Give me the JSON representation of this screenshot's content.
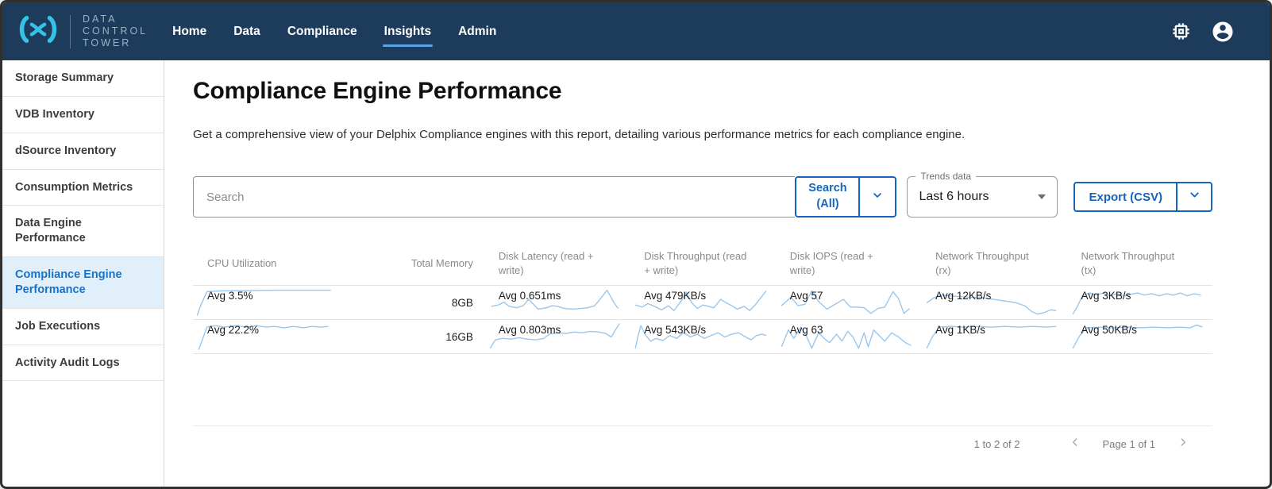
{
  "colors": {
    "navbar_bg": "#1d3c5c",
    "logo_cyan": "#35c2e8",
    "accent_blue": "#1565c0",
    "active_underline": "#58a6e8",
    "sidebar_active_bg": "#e1effa",
    "sidebar_active_text": "#1872c8",
    "sparkline": "#9ac7ee",
    "header_text": "#8a8a8a"
  },
  "icons": {
    "navbar_right": [
      "developer-chip-icon",
      "account-circle-icon"
    ],
    "search_caret": "chevron-down-icon",
    "trends_arrow": "dropdown-arrow-icon",
    "export_caret": "chevron-down-icon",
    "pagination_prev": "chevron-left-icon",
    "pagination_next": "chevron-right-icon"
  },
  "navbar": {
    "logo": {
      "mark": "delphix-x-mark",
      "lines": [
        "DATA",
        "CONTROL",
        "TOWER"
      ]
    },
    "items": [
      {
        "label": "Home",
        "active": false
      },
      {
        "label": "Data",
        "active": false
      },
      {
        "label": "Compliance",
        "active": false
      },
      {
        "label": "Insights",
        "active": true
      },
      {
        "label": "Admin",
        "active": false
      }
    ]
  },
  "sidebar": {
    "items": [
      {
        "label": "Storage Summary",
        "active": false
      },
      {
        "label": "VDB Inventory",
        "active": false
      },
      {
        "label": "dSource Inventory",
        "active": false
      },
      {
        "label": "Consumption Metrics",
        "active": false
      },
      {
        "label": "Data Engine Performance",
        "active": false
      },
      {
        "label": "Compliance Engine Performance",
        "active": true
      },
      {
        "label": "Job Executions",
        "active": false
      },
      {
        "label": "Activity Audit Logs",
        "active": false
      }
    ]
  },
  "page": {
    "title": "Compliance Engine Performance",
    "description": "Get a comprehensive view of your Delphix Compliance engines with this report, detailing various performance metrics for each compliance engine."
  },
  "controls": {
    "search": {
      "placeholder": "Search",
      "value": "",
      "button_label": "Search (All)"
    },
    "trends": {
      "label": "Trends data",
      "value": "Last 6 hours"
    },
    "export": {
      "label": "Export (CSV)"
    }
  },
  "chart_data": {
    "type": "table",
    "columns": [
      {
        "label": "CPU Utilization",
        "type": "spark",
        "align": "left"
      },
      {
        "label": "Total Memory",
        "type": "text",
        "align": "right"
      },
      {
        "label": "Disk Latency (read + write)",
        "type": "spark",
        "align": "left"
      },
      {
        "label": "Disk Throughput (read + write)",
        "type": "spark",
        "align": "left"
      },
      {
        "label": "Disk IOPS (read + write)",
        "type": "spark",
        "align": "left"
      },
      {
        "label": "Network Throughput (rx)",
        "type": "spark",
        "align": "left"
      },
      {
        "label": "Network Throughput (tx)",
        "type": "spark",
        "align": "left"
      }
    ],
    "rows": [
      {
        "cells": [
          {
            "avg": "Avg 3.5%",
            "trend": [
              [
                2,
                40
              ],
              [
                4,
                28
              ],
              [
                9,
                6
              ],
              [
                20,
                5
              ],
              [
                60,
                4
              ],
              [
                99,
                4
              ]
            ]
          },
          {
            "text": "8GB"
          },
          {
            "avg": "Avg 0.651ms",
            "trend": [
              [
                4,
                27
              ],
              [
                9,
                25
              ],
              [
                13,
                21
              ],
              [
                17,
                27
              ],
              [
                22,
                29
              ],
              [
                27,
                26
              ],
              [
                31,
                17
              ],
              [
                34,
                23
              ],
              [
                38,
                31
              ],
              [
                44,
                29
              ],
              [
                48,
                26
              ],
              [
                52,
                27
              ],
              [
                57,
                30
              ],
              [
                63,
                31
              ],
              [
                69,
                30
              ],
              [
                74,
                29
              ],
              [
                79,
                26
              ],
              [
                84,
                14
              ],
              [
                88,
                4
              ],
              [
                93,
                22
              ],
              [
                96,
                30
              ]
            ]
          },
          {
            "avg": "Avg 479KB/s",
            "trend": [
              [
                3,
                25
              ],
              [
                8,
                28
              ],
              [
                12,
                23
              ],
              [
                17,
                27
              ],
              [
                22,
                32
              ],
              [
                27,
                26
              ],
              [
                31,
                33
              ],
              [
                36,
                20
              ],
              [
                40,
                7
              ],
              [
                44,
                22
              ],
              [
                48,
                30
              ],
              [
                52,
                25
              ],
              [
                56,
                27
              ],
              [
                60,
                29
              ],
              [
                65,
                17
              ],
              [
                69,
                22
              ],
              [
                73,
                26
              ],
              [
                77,
                31
              ],
              [
                82,
                27
              ],
              [
                86,
                33
              ],
              [
                90,
                25
              ],
              [
                94,
                15
              ],
              [
                98,
                5
              ]
            ]
          },
          {
            "avg": "Avg 57",
            "trend": [
              [
                3,
                26
              ],
              [
                10,
                14
              ],
              [
                15,
                26
              ],
              [
                20,
                24
              ],
              [
                25,
                5
              ],
              [
                30,
                20
              ],
              [
                36,
                31
              ],
              [
                42,
                24
              ],
              [
                48,
                17
              ],
              [
                53,
                28
              ],
              [
                58,
                28
              ],
              [
                63,
                29
              ],
              [
                68,
                37
              ],
              [
                73,
                30
              ],
              [
                78,
                28
              ],
              [
                84,
                6
              ],
              [
                88,
                16
              ],
              [
                92,
                37
              ],
              [
                96,
                30
              ]
            ]
          },
          {
            "avg": "Avg 12KB/s",
            "trend": [
              [
                3,
                22
              ],
              [
                8,
                15
              ],
              [
                13,
                11
              ],
              [
                20,
                12
              ],
              [
                27,
                13
              ],
              [
                34,
                14
              ],
              [
                41,
                14
              ],
              [
                48,
                16
              ],
              [
                55,
                18
              ],
              [
                62,
                20
              ],
              [
                68,
                22
              ],
              [
                74,
                26
              ],
              [
                79,
                34
              ],
              [
                83,
                38
              ],
              [
                88,
                36
              ],
              [
                93,
                32
              ],
              [
                97,
                33
              ]
            ]
          },
          {
            "avg": "Avg 3KB/s",
            "trend": [
              [
                3,
                38
              ],
              [
                6,
                28
              ],
              [
                10,
                12
              ],
              [
                15,
                8
              ],
              [
                20,
                11
              ],
              [
                25,
                8
              ],
              [
                30,
                12
              ],
              [
                35,
                9
              ],
              [
                40,
                12
              ],
              [
                45,
                10
              ],
              [
                50,
                8
              ],
              [
                55,
                11
              ],
              [
                60,
                9
              ],
              [
                66,
                12
              ],
              [
                71,
                9
              ],
              [
                76,
                11
              ],
              [
                81,
                8
              ],
              [
                86,
                12
              ],
              [
                91,
                9
              ],
              [
                96,
                11
              ]
            ]
          }
        ]
      },
      {
        "cells": [
          {
            "avg": "Avg 22.2%",
            "trend": [
              [
                3,
                40
              ],
              [
                9,
                8
              ],
              [
                15,
                6
              ],
              [
                22,
                8
              ],
              [
                30,
                6
              ],
              [
                38,
                8
              ],
              [
                45,
                6
              ],
              [
                52,
                8
              ],
              [
                58,
                7
              ],
              [
                65,
                9
              ],
              [
                72,
                7
              ],
              [
                79,
                9
              ],
              [
                85,
                7
              ],
              [
                92,
                8
              ],
              [
                97,
                7
              ]
            ]
          },
          {
            "text": "16GB"
          },
          {
            "avg": "Avg 0.803ms",
            "trend": [
              [
                3,
                38
              ],
              [
                7,
                26
              ],
              [
                12,
                24
              ],
              [
                18,
                25
              ],
              [
                24,
                23
              ],
              [
                30,
                25
              ],
              [
                36,
                26
              ],
              [
                42,
                24
              ],
              [
                46,
                18
              ],
              [
                52,
                16
              ],
              [
                58,
                17
              ],
              [
                64,
                15
              ],
              [
                70,
                16
              ],
              [
                76,
                14
              ],
              [
                82,
                15
              ],
              [
                87,
                17
              ],
              [
                91,
                22
              ],
              [
                94,
                12
              ],
              [
                97,
                3
              ]
            ]
          },
          {
            "avg": "Avg 543KB/s",
            "trend": [
              [
                3,
                38
              ],
              [
                5,
                20
              ],
              [
                7,
                6
              ],
              [
                10,
                18
              ],
              [
                14,
                28
              ],
              [
                18,
                24
              ],
              [
                23,
                27
              ],
              [
                28,
                20
              ],
              [
                33,
                24
              ],
              [
                38,
                16
              ],
              [
                43,
                22
              ],
              [
                48,
                18
              ],
              [
                53,
                24
              ],
              [
                58,
                20
              ],
              [
                63,
                16
              ],
              [
                68,
                22
              ],
              [
                73,
                18
              ],
              [
                78,
                16
              ],
              [
                83,
                22
              ],
              [
                87,
                26
              ],
              [
                91,
                20
              ],
              [
                95,
                18
              ],
              [
                98,
                20
              ]
            ]
          },
          {
            "avg": "Avg 63",
            "trend": [
              [
                3,
                36
              ],
              [
                8,
                12
              ],
              [
                12,
                24
              ],
              [
                17,
                8
              ],
              [
                21,
                20
              ],
              [
                25,
                38
              ],
              [
                30,
                16
              ],
              [
                34,
                24
              ],
              [
                38,
                30
              ],
              [
                43,
                18
              ],
              [
                47,
                28
              ],
              [
                51,
                14
              ],
              [
                55,
                22
              ],
              [
                59,
                38
              ],
              [
                63,
                16
              ],
              [
                66,
                36
              ],
              [
                70,
                12
              ],
              [
                74,
                20
              ],
              [
                78,
                28
              ],
              [
                83,
                16
              ],
              [
                88,
                22
              ],
              [
                93,
                30
              ],
              [
                97,
                34
              ]
            ]
          },
          {
            "avg": "Avg 1KB/s",
            "trend": [
              [
                3,
                38
              ],
              [
                7,
                22
              ],
              [
                12,
                8
              ],
              [
                20,
                7
              ],
              [
                30,
                8
              ],
              [
                40,
                7
              ],
              [
                50,
                8
              ],
              [
                60,
                7
              ],
              [
                70,
                8
              ],
              [
                80,
                7
              ],
              [
                90,
                8
              ],
              [
                97,
                7
              ]
            ]
          },
          {
            "avg": "Avg 50KB/s",
            "trend": [
              [
                3,
                38
              ],
              [
                8,
                20
              ],
              [
                13,
                9
              ],
              [
                22,
                8
              ],
              [
                32,
                9
              ],
              [
                42,
                8
              ],
              [
                52,
                9
              ],
              [
                62,
                8
              ],
              [
                72,
                9
              ],
              [
                80,
                8
              ],
              [
                88,
                9
              ],
              [
                93,
                5
              ],
              [
                97,
                8
              ]
            ]
          }
        ]
      }
    ]
  },
  "footer": {
    "range": "1 to 2 of 2",
    "page": "Page 1 of 1"
  }
}
